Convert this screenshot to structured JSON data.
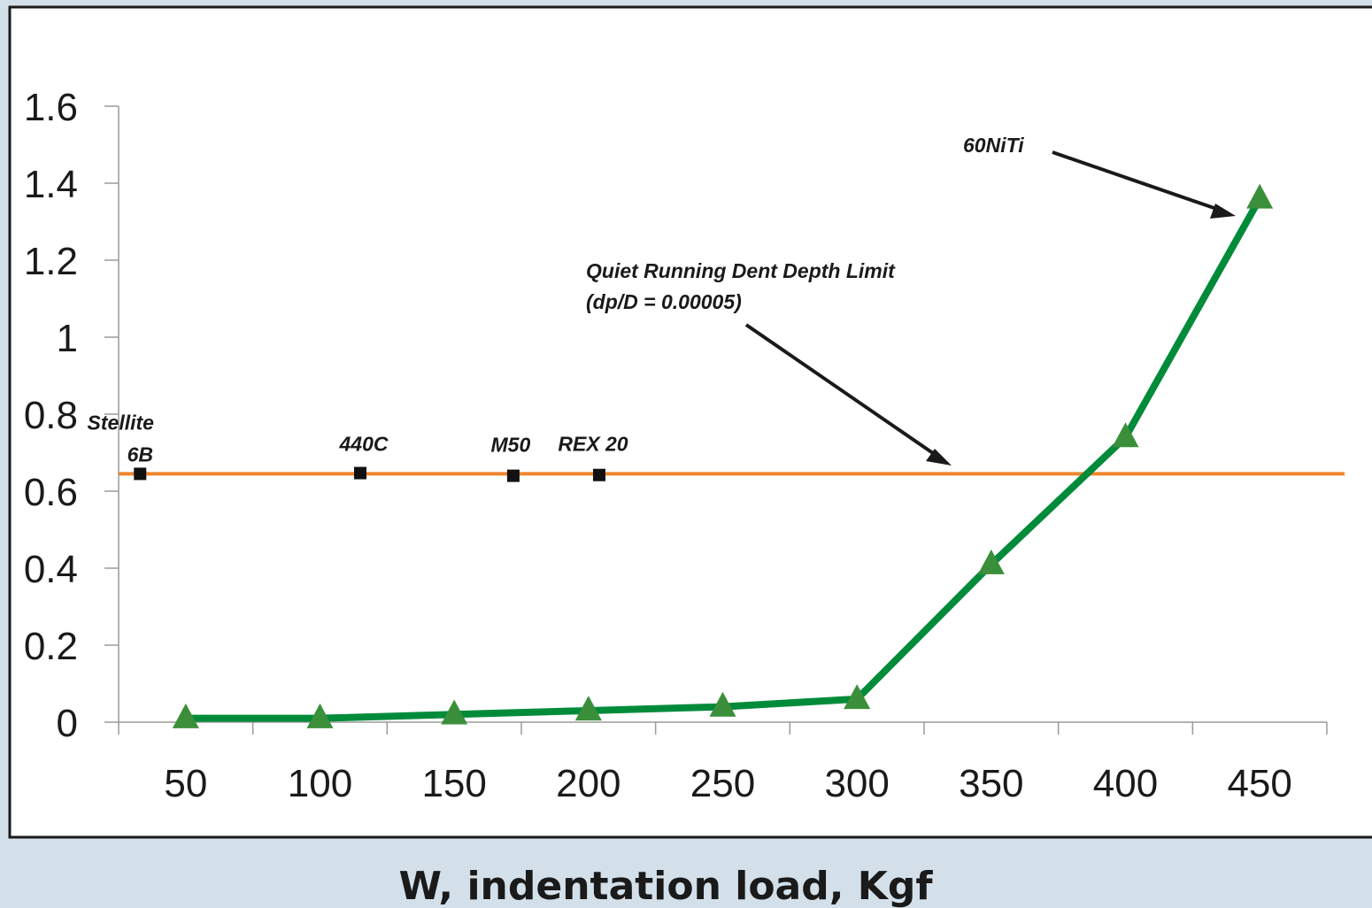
{
  "chart_data": {
    "type": "line",
    "xlabel": "W, indentation load, Kgf",
    "ylabel": "",
    "categories": [
      "50",
      "100",
      "150",
      "200",
      "250",
      "300",
      "350",
      "400",
      "450"
    ],
    "ylim": [
      0,
      1.6
    ],
    "yticks": [
      "0",
      "0.2",
      "0.4",
      "0.6",
      "0.8",
      "1",
      "1.2",
      "1.4",
      "1.6"
    ],
    "series": [
      {
        "values": [
          0.01,
          0.01,
          0.02,
          0.03,
          0.04,
          0.06,
          0.41,
          0.74,
          1.36
        ]
      }
    ],
    "limit_line": {
      "value": 0.645
    },
    "materials": [
      {
        "label_line1": "Stellite",
        "label_line2": "6B",
        "x": 33,
        "y": 0.645
      },
      {
        "label_line1": "440C",
        "label_line2": "",
        "x": 115,
        "y": 0.647
      },
      {
        "label_line1": "M50",
        "label_line2": "",
        "x": 172,
        "y": 0.64
      },
      {
        "label_line1": "REX 20",
        "label_line2": "",
        "x": 204,
        "y": 0.642
      }
    ],
    "annotations": {
      "limit_line1": "Quiet Running Dent Depth Limit",
      "limit_line2": "(dp/D = 0.00005)",
      "niti": "60NiTi"
    },
    "grid": false,
    "legend": "none",
    "colors": {
      "series": "#008b3a",
      "marker": "#3b8f3a",
      "limit": "#f0852d",
      "material_marker": "#111111"
    }
  }
}
